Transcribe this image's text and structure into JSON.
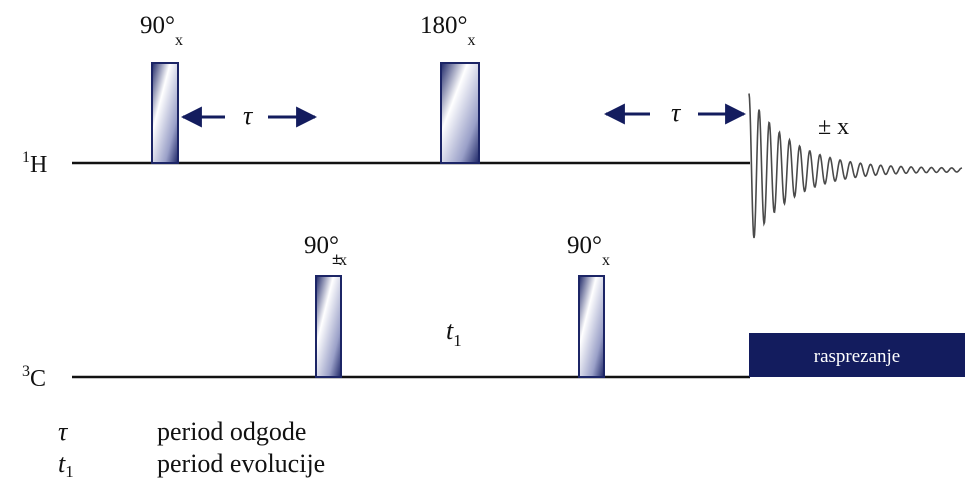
{
  "channels": {
    "h": {
      "label": "H",
      "sup": "1"
    },
    "c": {
      "label": "C",
      "sup": "3"
    }
  },
  "pulses": {
    "h90": {
      "value": "90°",
      "sub": "x"
    },
    "h180": {
      "value": "180°",
      "sub": "x"
    },
    "c90a": {
      "value": "90°",
      "sub": "x",
      "pm": "±"
    },
    "c90b": {
      "value": "90°",
      "sub": "x"
    }
  },
  "delays": {
    "tau": "τ",
    "t1": "t",
    "t1_sub": "1"
  },
  "fid": {
    "phase": "± x"
  },
  "decoupling": {
    "label": "rasprezanje"
  },
  "legend": [
    {
      "symbol": "τ",
      "sub": "",
      "text": "period odgode"
    },
    {
      "symbol": "t",
      "sub": "1",
      "text": "period evolucije"
    }
  ],
  "colors": {
    "navy": "#131c5e",
    "pulse_edge": "#1c2566",
    "fid": "#4a4a4a",
    "line": "#111111"
  }
}
